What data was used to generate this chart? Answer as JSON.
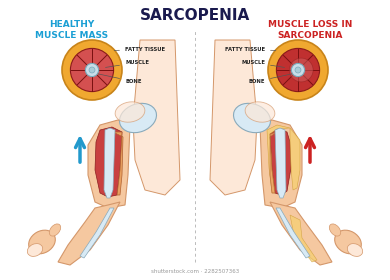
{
  "title": "SARCOPENIA",
  "title_color": "#1a1a4e",
  "title_fontsize": 11,
  "left_subtitle": "HEALTHY\nMUSCLE MASS",
  "left_subtitle_color": "#1a9fd4",
  "right_subtitle": "MUSCLE LOSS IN\nSARCOPENIA",
  "right_subtitle_color": "#cc2222",
  "subtitle_fontsize": 6.5,
  "bg_color": "#ffffff",
  "divider_color": "#bbbbbb",
  "label_fontsize": 3.8,
  "label_color": "#222222",
  "fatty_outer_color": "#f0a830",
  "fatty_outer_edge": "#c8841a",
  "muscle_healthy_color": "#d45050",
  "muscle_sarco_color": "#c03030",
  "bone_color": "#c8dde8",
  "bone_edge": "#7aaabb",
  "bone_dot_color": "#a8ccd8",
  "arrow_left_color": "#2299cc",
  "arrow_right_color": "#cc2222",
  "skin_color": "#f5c8a0",
  "skin_edge_color": "#d4976a",
  "skin_light": "#fde8d8",
  "shoulder_bone_color": "#d8eaf5",
  "shoulder_bone_edge": "#8aaabb",
  "muscle_red": "#c84040",
  "muscle_red_edge": "#8a2020",
  "muscle_orange": "#e8a060",
  "muscle_orange_edge": "#b06030",
  "tendon_color": "#e8d8b8",
  "fatty_yellow": "#f5d070",
  "watermark_color": "#999999",
  "watermark_fontsize": 4.0
}
